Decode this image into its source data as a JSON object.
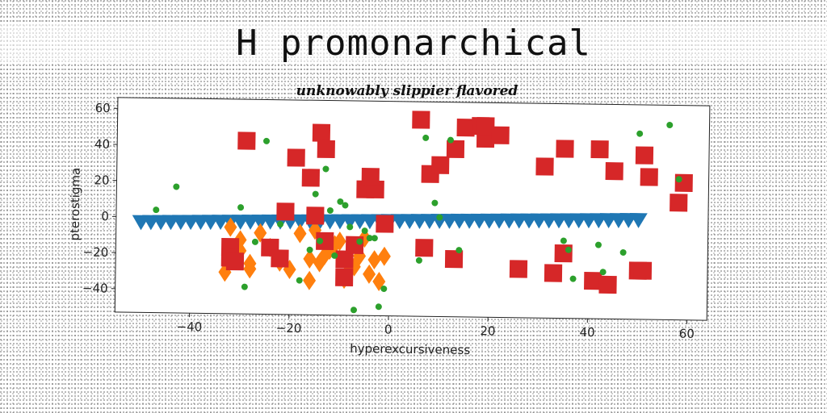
{
  "chart_data": {
    "type": "scatter",
    "title": "H promonarchical",
    "subtitle": "unknowably slippier flavored",
    "xlabel": "hyperexcursiveness",
    "ylabel": "pterostigma",
    "xlim": [
      -55,
      64
    ],
    "ylim": [
      -53,
      66
    ],
    "xticks": [
      -40,
      -20,
      0,
      20,
      40,
      60
    ],
    "yticks": [
      -40,
      -20,
      0,
      20,
      40,
      60
    ],
    "grid": false,
    "legend": "none",
    "series": [
      {
        "marker": "triangle-down",
        "color": "#1f77b4",
        "x": [
          -50,
          -48,
          -46,
          -44,
          -42,
          -40,
          -38,
          -36,
          -34,
          -32,
          -30,
          -28,
          -26,
          -24,
          -22,
          -20,
          -18,
          -16,
          -14,
          -12,
          -10,
          -8,
          -6,
          -4,
          -2,
          0,
          2,
          4,
          6,
          8,
          10,
          12,
          14,
          16,
          18,
          20,
          22,
          24,
          26,
          28,
          30,
          32,
          34,
          36,
          38,
          40,
          42,
          44,
          46,
          48,
          50
        ],
        "y": [
          -2.5,
          -2.4,
          -2.3,
          -2.2,
          -2.1,
          -2.0,
          -1.9,
          -1.8,
          -1.7,
          -1.6,
          -1.5,
          -1.4,
          -1.3,
          -1.2,
          -1.1,
          -1.0,
          -0.9,
          -0.8,
          -0.7,
          -0.6,
          -0.5,
          -0.4,
          -0.3,
          -0.2,
          -0.1,
          0.0,
          0.1,
          0.2,
          0.3,
          0.4,
          0.5,
          0.6,
          0.7,
          0.8,
          0.9,
          1.0,
          1.1,
          1.2,
          1.3,
          1.4,
          1.5,
          1.6,
          1.7,
          1.8,
          1.9,
          2.0,
          2.1,
          2.2,
          2.3,
          2.4,
          2.5
        ]
      },
      {
        "marker": "diamond",
        "color": "#ff7f0e",
        "x": [
          -32,
          -30,
          -28,
          -26,
          -33,
          -30,
          -22,
          -18,
          -16,
          -15,
          -13,
          -11,
          -9,
          -7,
          -5,
          -3,
          -1,
          -2,
          -4,
          -6,
          -8,
          -10,
          -12,
          -14,
          -16,
          -20,
          -24,
          -28
        ],
        "y": [
          -5,
          -12,
          -25,
          -8,
          -30,
          -18,
          -24,
          -8,
          -22,
          -6,
          -20,
          -14,
          -33,
          -26,
          -10,
          -22,
          -20,
          -34,
          -30,
          -20,
          -28,
          -12,
          -17,
          -24,
          -34,
          -28,
          -16,
          -28
        ]
      },
      {
        "marker": "circle",
        "color": "#2ca02c",
        "x": [
          -47,
          -43,
          -30,
          -29,
          -27,
          -25,
          -22,
          -18,
          -16,
          -15,
          -14,
          -13,
          -12,
          -11,
          -10,
          -9,
          -8,
          -7,
          -6,
          -5,
          -4,
          -3,
          -2,
          -1,
          6,
          7,
          9,
          10,
          12,
          14,
          35,
          36,
          37,
          42,
          43,
          47,
          50,
          56,
          58
        ],
        "y": [
          4,
          17,
          6,
          -38,
          -13,
          43,
          -3,
          -34,
          -17,
          14,
          -12,
          28,
          5,
          -20,
          10,
          8,
          -4,
          -50,
          -12,
          -6,
          -10,
          -10,
          -48,
          -38,
          -22,
          46,
          10,
          2,
          45,
          -16,
          -10,
          -15,
          -31,
          -12,
          -27,
          -16,
          50,
          55,
          25
        ]
      },
      {
        "marker": "square",
        "color": "#d62728",
        "x": [
          -32,
          -32,
          -31,
          -29,
          -24,
          -22,
          -21,
          -19,
          -16,
          -15,
          -14,
          -13,
          -13,
          -9,
          -9,
          -7,
          -5,
          -3,
          -1,
          -4,
          6,
          7,
          8,
          10,
          13,
          13,
          15,
          18,
          19,
          19,
          22,
          26,
          31,
          33,
          35,
          35,
          41,
          42,
          44,
          45,
          50,
          51,
          51,
          52,
          58,
          59
        ],
        "y": [
          -16,
          -22,
          -24,
          43,
          -16,
          -22,
          4,
          34,
          23,
          2,
          48,
          -12,
          39,
          -22,
          -32,
          -14,
          17,
          17,
          -2,
          24,
          56,
          -15,
          26,
          31,
          -21,
          40,
          52,
          53,
          46,
          53,
          48,
          -26,
          31,
          -28,
          -17,
          41,
          -32,
          41,
          -34,
          29,
          -26,
          -26,
          38,
          26,
          12,
          23
        ]
      }
    ]
  }
}
